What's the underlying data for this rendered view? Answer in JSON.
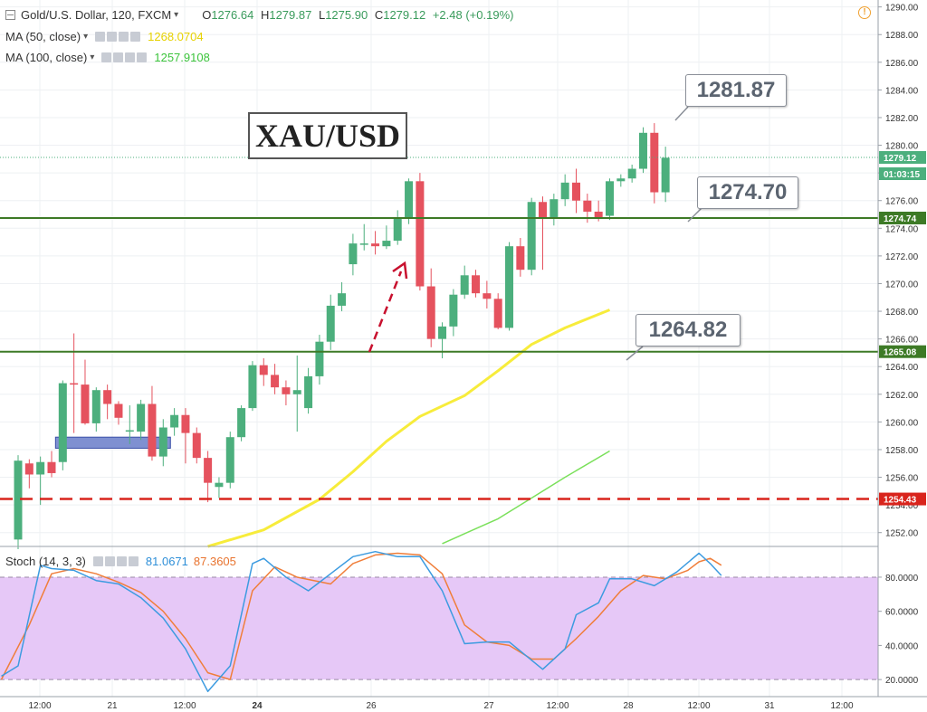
{
  "header": {
    "symbol": "Gold/U.S. Dollar, 120, FXCM",
    "ohlc": {
      "o_key": "O",
      "o": "1276.64",
      "h_key": "H",
      "h": "1279.87",
      "l_key": "L",
      "l": "1275.90",
      "c_key": "C",
      "c": "1279.12",
      "change": "+2.48 (+0.19%)"
    },
    "ma50_label": "MA (50, close)",
    "ma50_value": "1268.0704",
    "ma100_label": "MA (100, close)",
    "ma100_value": "1257.9108",
    "stoch_label": "Stoch (14, 3, 3)",
    "stoch_k_value": "81.0671",
    "stoch_d_value": "87.3605"
  },
  "annotations": {
    "title": "XAU/USD",
    "callout_high": "1281.87",
    "callout_low": "1274.70",
    "callout_ma": "1264.82"
  },
  "price_tags": {
    "last": "1279.12",
    "countdown": "01:03:15",
    "res1": "1274.74",
    "sup1": "1265.08",
    "sup2": "1254.43"
  },
  "colors": {
    "up": "#4caf7d",
    "down": "#e5525e",
    "ma50": "#f7ec3b",
    "ma100": "#7ae05a",
    "hline_green": "#3d7a26",
    "hline_red": "#d9241c",
    "stoch_k": "#3c9be0",
    "stoch_d": "#f07e3a",
    "stoch_band": "#e6c8f7",
    "zone": "#7f90d1"
  },
  "chart_data": {
    "type": "candlestick",
    "ylim": [
      1251,
      1290.5
    ],
    "yticks": [
      1252,
      1254,
      1256,
      1258,
      1260,
      1262,
      1264,
      1266,
      1268,
      1270,
      1272,
      1274,
      1276,
      1278,
      1280,
      1282,
      1284,
      1286,
      1288,
      1290
    ],
    "x_ticks": [
      "12:00",
      "21",
      "12:00",
      "24",
      "26",
      "27",
      "12:00",
      "28",
      "12:00",
      "31",
      "12:00"
    ],
    "candles": [
      {
        "o": 1251.5,
        "h": 1257.6,
        "l": 1250.8,
        "c": 1257.2
      },
      {
        "o": 1257.0,
        "h": 1257.3,
        "l": 1255.2,
        "c": 1256.2
      },
      {
        "o": 1256.2,
        "h": 1257.5,
        "l": 1254.0,
        "c": 1257.1
      },
      {
        "o": 1257.1,
        "h": 1257.9,
        "l": 1256.0,
        "c": 1256.3
      },
      {
        "o": 1257.1,
        "h": 1263.0,
        "l": 1256.5,
        "c": 1262.8
      },
      {
        "o": 1262.8,
        "h": 1266.4,
        "l": 1259.2,
        "c": 1262.7
      },
      {
        "o": 1262.7,
        "h": 1264.5,
        "l": 1259.8,
        "c": 1259.9
      },
      {
        "o": 1259.9,
        "h": 1262.5,
        "l": 1259.3,
        "c": 1262.3
      },
      {
        "o": 1262.3,
        "h": 1262.7,
        "l": 1260.2,
        "c": 1261.3
      },
      {
        "o": 1261.3,
        "h": 1261.5,
        "l": 1259.8,
        "c": 1260.3
      },
      {
        "o": 1259.3,
        "h": 1261.2,
        "l": 1258.4,
        "c": 1259.4
      },
      {
        "o": 1259.3,
        "h": 1261.6,
        "l": 1258.7,
        "c": 1261.3
      },
      {
        "o": 1261.3,
        "h": 1262.6,
        "l": 1257.2,
        "c": 1257.5
      },
      {
        "o": 1257.5,
        "h": 1260.2,
        "l": 1256.8,
        "c": 1259.6
      },
      {
        "o": 1259.6,
        "h": 1261.0,
        "l": 1259.0,
        "c": 1260.5
      },
      {
        "o": 1260.5,
        "h": 1261.0,
        "l": 1257.0,
        "c": 1259.2
      },
      {
        "o": 1259.2,
        "h": 1259.6,
        "l": 1257.0,
        "c": 1257.4
      },
      {
        "o": 1257.4,
        "h": 1257.9,
        "l": 1254.2,
        "c": 1255.6
      },
      {
        "o": 1255.3,
        "h": 1256.0,
        "l": 1254.5,
        "c": 1255.6
      },
      {
        "o": 1255.6,
        "h": 1259.3,
        "l": 1255.2,
        "c": 1258.9
      },
      {
        "o": 1258.9,
        "h": 1261.2,
        "l": 1258.6,
        "c": 1261.0
      },
      {
        "o": 1261.0,
        "h": 1264.4,
        "l": 1260.8,
        "c": 1264.1
      },
      {
        "o": 1264.1,
        "h": 1264.6,
        "l": 1262.6,
        "c": 1263.4
      },
      {
        "o": 1263.4,
        "h": 1264.2,
        "l": 1262.0,
        "c": 1262.5
      },
      {
        "o": 1262.5,
        "h": 1263.0,
        "l": 1261.2,
        "c": 1262.0
      },
      {
        "o": 1262.0,
        "h": 1264.8,
        "l": 1259.3,
        "c": 1262.3
      },
      {
        "o": 1261.0,
        "h": 1263.9,
        "l": 1260.6,
        "c": 1263.3
      },
      {
        "o": 1263.3,
        "h": 1266.3,
        "l": 1262.7,
        "c": 1265.8
      },
      {
        "o": 1265.8,
        "h": 1269.2,
        "l": 1265.2,
        "c": 1268.4
      },
      {
        "o": 1268.4,
        "h": 1270.1,
        "l": 1268.0,
        "c": 1269.3
      },
      {
        "o": 1271.4,
        "h": 1273.6,
        "l": 1270.6,
        "c": 1272.9
      },
      {
        "o": 1272.9,
        "h": 1274.3,
        "l": 1272.4,
        "c": 1272.9
      },
      {
        "o": 1272.9,
        "h": 1273.8,
        "l": 1272.1,
        "c": 1272.7
      },
      {
        "o": 1272.7,
        "h": 1274.2,
        "l": 1272.5,
        "c": 1273.1
      },
      {
        "o": 1273.1,
        "h": 1275.3,
        "l": 1272.8,
        "c": 1274.8
      },
      {
        "o": 1274.8,
        "h": 1277.6,
        "l": 1274.3,
        "c": 1277.4
      },
      {
        "o": 1277.4,
        "h": 1278.0,
        "l": 1269.5,
        "c": 1269.8
      },
      {
        "o": 1269.8,
        "h": 1271.1,
        "l": 1265.4,
        "c": 1266.0
      },
      {
        "o": 1266.0,
        "h": 1267.2,
        "l": 1264.6,
        "c": 1266.9
      },
      {
        "o": 1266.9,
        "h": 1269.6,
        "l": 1266.2,
        "c": 1269.2
      },
      {
        "o": 1269.2,
        "h": 1271.3,
        "l": 1268.9,
        "c": 1270.6
      },
      {
        "o": 1270.6,
        "h": 1271.0,
        "l": 1269.0,
        "c": 1269.3
      },
      {
        "o": 1269.3,
        "h": 1270.2,
        "l": 1268.2,
        "c": 1268.9
      },
      {
        "o": 1268.9,
        "h": 1269.3,
        "l": 1266.7,
        "c": 1266.8
      },
      {
        "o": 1266.8,
        "h": 1273.0,
        "l": 1266.6,
        "c": 1272.7
      },
      {
        "o": 1272.7,
        "h": 1273.3,
        "l": 1270.5,
        "c": 1271.0
      },
      {
        "o": 1271.0,
        "h": 1276.2,
        "l": 1270.6,
        "c": 1275.9
      },
      {
        "o": 1275.9,
        "h": 1276.3,
        "l": 1271.0,
        "c": 1274.8
      },
      {
        "o": 1274.8,
        "h": 1276.5,
        "l": 1274.2,
        "c": 1276.1
      },
      {
        "o": 1276.1,
        "h": 1277.9,
        "l": 1275.6,
        "c": 1277.3
      },
      {
        "o": 1277.3,
        "h": 1278.3,
        "l": 1275.1,
        "c": 1276.0
      },
      {
        "o": 1276.0,
        "h": 1276.5,
        "l": 1274.4,
        "c": 1275.2
      },
      {
        "o": 1275.2,
        "h": 1276.0,
        "l": 1274.5,
        "c": 1274.8
      },
      {
        "o": 1274.9,
        "h": 1277.6,
        "l": 1274.6,
        "c": 1277.4
      },
      {
        "o": 1277.4,
        "h": 1277.9,
        "l": 1277.0,
        "c": 1277.6
      },
      {
        "o": 1277.6,
        "h": 1278.6,
        "l": 1277.3,
        "c": 1278.3
      },
      {
        "o": 1278.3,
        "h": 1281.3,
        "l": 1278.0,
        "c": 1280.9
      },
      {
        "o": 1280.9,
        "h": 1281.6,
        "l": 1275.8,
        "c": 1276.6
      },
      {
        "o": 1276.6,
        "h": 1279.9,
        "l": 1275.9,
        "c": 1279.1
      }
    ],
    "ma50": [
      [
        17,
        1251.0
      ],
      [
        22,
        1252.2
      ],
      [
        27,
        1254.4
      ],
      [
        30,
        1256.4
      ],
      [
        33,
        1258.6
      ],
      [
        36,
        1260.4
      ],
      [
        40,
        1261.9
      ],
      [
        43,
        1263.7
      ],
      [
        46,
        1265.6
      ],
      [
        49,
        1266.8
      ],
      [
        53,
        1268.1
      ]
    ],
    "ma100": [
      [
        38,
        1251.2
      ],
      [
        43,
        1253.0
      ],
      [
        46,
        1254.5
      ],
      [
        49,
        1256.0
      ],
      [
        53,
        1257.9
      ]
    ],
    "levels": [
      {
        "price": 1274.74,
        "style": "solid",
        "color": "green"
      },
      {
        "price": 1265.08,
        "style": "solid",
        "color": "green"
      },
      {
        "price": 1254.43,
        "style": "dashed",
        "color": "red"
      }
    ],
    "zone": {
      "from_index": 4,
      "to_index": 13,
      "low": 1258.1,
      "high": 1258.9
    },
    "stochastic": {
      "ylim": [
        10,
        98
      ],
      "yticks": [
        20,
        40,
        60,
        80
      ],
      "band": [
        20,
        80
      ],
      "k": [
        [
          -1.5,
          22
        ],
        [
          0,
          28
        ],
        [
          2,
          87
        ],
        [
          3,
          85
        ],
        [
          5,
          84
        ],
        [
          7,
          78
        ],
        [
          9,
          76
        ],
        [
          11,
          68
        ],
        [
          13,
          56
        ],
        [
          15,
          38
        ],
        [
          17,
          13
        ],
        [
          19,
          28
        ],
        [
          21,
          88
        ],
        [
          22,
          91
        ],
        [
          24,
          80
        ],
        [
          26,
          72
        ],
        [
          28,
          82
        ],
        [
          30,
          92
        ],
        [
          32,
          95
        ],
        [
          34,
          92
        ],
        [
          36,
          92
        ],
        [
          38,
          72
        ],
        [
          40,
          41
        ],
        [
          42,
          42
        ],
        [
          44,
          42
        ],
        [
          47,
          26
        ],
        [
          49,
          38
        ],
        [
          50,
          58
        ],
        [
          52,
          65
        ],
        [
          53,
          79
        ],
        [
          55,
          79
        ],
        [
          57,
          75
        ],
        [
          59,
          83
        ],
        [
          61,
          94
        ],
        [
          62,
          88
        ],
        [
          63,
          81
        ]
      ],
      "d": [
        [
          -1.5,
          20
        ],
        [
          1,
          52
        ],
        [
          3,
          82
        ],
        [
          5,
          85
        ],
        [
          7,
          82
        ],
        [
          9,
          77
        ],
        [
          11,
          71
        ],
        [
          13,
          60
        ],
        [
          15,
          44
        ],
        [
          17,
          24
        ],
        [
          19,
          20
        ],
        [
          21,
          72
        ],
        [
          23,
          86
        ],
        [
          25,
          80
        ],
        [
          28,
          76
        ],
        [
          30,
          88
        ],
        [
          32,
          93
        ],
        [
          34,
          94
        ],
        [
          36,
          93
        ],
        [
          38,
          82
        ],
        [
          40,
          52
        ],
        [
          42,
          42
        ],
        [
          44,
          40
        ],
        [
          46,
          32
        ],
        [
          48,
          32
        ],
        [
          50,
          44
        ],
        [
          52,
          57
        ],
        [
          54,
          72
        ],
        [
          56,
          81
        ],
        [
          58,
          79
        ],
        [
          60,
          84
        ],
        [
          61,
          89
        ],
        [
          62,
          91
        ],
        [
          63,
          87
        ]
      ]
    }
  }
}
